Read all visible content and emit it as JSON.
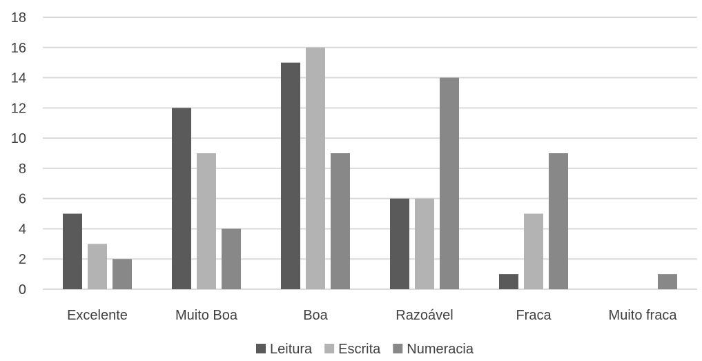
{
  "chart_data": {
    "type": "bar",
    "categories": [
      "Excelente",
      "Muito Boa",
      "Boa",
      "Razoável",
      "Fraca",
      "Muito fraca"
    ],
    "series": [
      {
        "name": "Leitura",
        "values": [
          5,
          12,
          15,
          6,
          1,
          0
        ],
        "color": "#5a5a5a"
      },
      {
        "name": "Escrita",
        "values": [
          3,
          9,
          16,
          6,
          5,
          0
        ],
        "color": "#b3b3b3"
      },
      {
        "name": "Numeracia",
        "values": [
          2,
          4,
          9,
          14,
          9,
          1
        ],
        "color": "#888888"
      }
    ],
    "ylim": [
      0,
      18
    ],
    "yticks": [
      0,
      2,
      4,
      6,
      8,
      10,
      12,
      14,
      16,
      18
    ],
    "grid": true,
    "gridColor": "#d9d9d9",
    "legend": "bottom",
    "title": "",
    "xlabel": "",
    "ylabel": ""
  }
}
